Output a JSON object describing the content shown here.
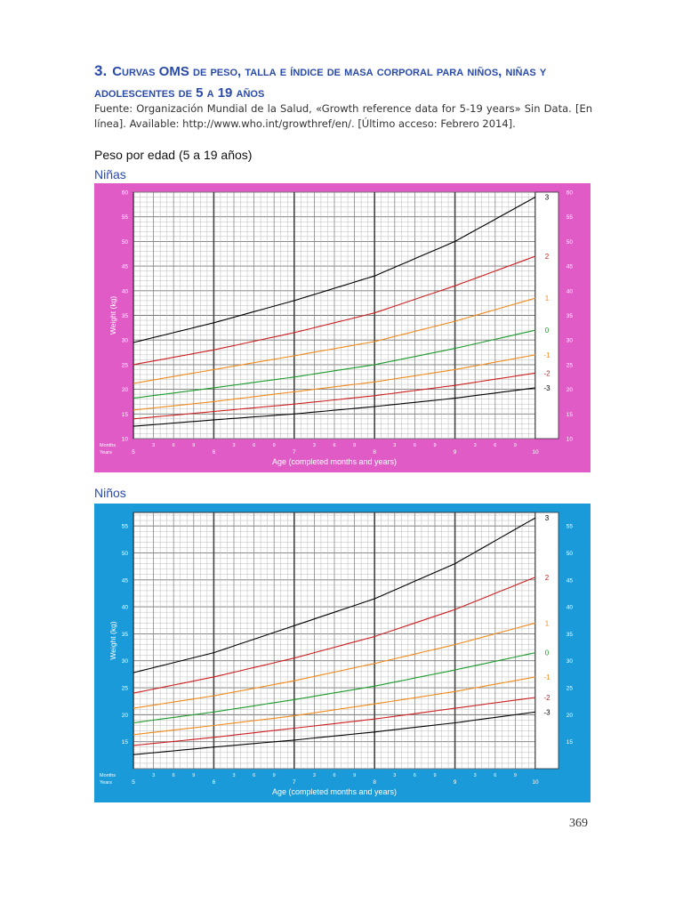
{
  "heading": {
    "number": "3.",
    "text": "Curvas OMS de peso, talla e índice de masa corporal para niños, niñas y adolescentes de 5 a 19 años"
  },
  "source": "Fuente: Organización Mundial de la Salud, «Growth reference data for 5-19 years» Sin Data. [En línea]. Available: http://www.who.int/growthref/en/. [Último acceso: Febrero 2014].",
  "subtitle": "Peso por edad (5 a 19 años)",
  "page_number": "369",
  "colors": {
    "girls_frame": "#e05bc6",
    "boys_frame": "#1a9ad8",
    "heading": "#2a4aa8",
    "sd_3": "#000000",
    "sd_2": "#cc1f1f",
    "sd_1": "#f08a1c",
    "sd_0": "#1c9a2c"
  },
  "chart_data": [
    {
      "type": "line",
      "section_label": "Niñas",
      "ylabel": "Weight (kg)",
      "xlabel": "Age (completed months and years)",
      "row_label_months": "Months",
      "row_label_years": "Years",
      "x_ticks_years": [
        "5",
        "6",
        "7",
        "8",
        "9",
        "10"
      ],
      "x_ticks_months": [
        "3",
        "6",
        "9"
      ],
      "xlim": [
        5,
        10
      ],
      "ylim": [
        10,
        60
      ],
      "y_ticks": [
        10,
        15,
        20,
        25,
        30,
        35,
        40,
        45,
        50,
        55,
        60
      ],
      "grid": true,
      "x": [
        5,
        6,
        7,
        8,
        9,
        10
      ],
      "series": [
        {
          "name": "3",
          "color": "#000000",
          "values": [
            29.5,
            33.5,
            38,
            43,
            50,
            59
          ]
        },
        {
          "name": "2",
          "color": "#cc1f1f",
          "values": [
            25,
            28,
            31.5,
            35.5,
            41,
            47
          ]
        },
        {
          "name": "1",
          "color": "#f08a1c",
          "values": [
            21.2,
            24,
            26.8,
            29.7,
            33.8,
            38.5
          ]
        },
        {
          "name": "0",
          "color": "#1c9a2c",
          "values": [
            18.2,
            20.3,
            22.5,
            25,
            28.3,
            32
          ]
        },
        {
          "name": "-1",
          "color": "#f08a1c",
          "values": [
            15.8,
            17.5,
            19.5,
            21.5,
            24,
            27
          ]
        },
        {
          "name": "-2",
          "color": "#cc1f1f",
          "values": [
            14,
            15.5,
            17,
            18.7,
            20.8,
            23.3
          ]
        },
        {
          "name": "-3",
          "color": "#000000",
          "values": [
            12.5,
            13.8,
            15,
            16.5,
            18.2,
            20.3
          ]
        }
      ]
    },
    {
      "type": "line",
      "section_label": "Niños",
      "ylabel": "Weight (kg)",
      "xlabel": "Age (completed months and years)",
      "row_label_months": "Months",
      "row_label_years": "Years",
      "x_ticks_years": [
        "5",
        "6",
        "7",
        "8",
        "9",
        "10"
      ],
      "x_ticks_months": [
        "3",
        "6",
        "9"
      ],
      "xlim": [
        5,
        10
      ],
      "ylim": [
        10,
        57.5
      ],
      "y_ticks": [
        15,
        20,
        25,
        30,
        35,
        40,
        45,
        50,
        55
      ],
      "grid": true,
      "x": [
        5,
        6,
        7,
        8,
        9,
        10
      ],
      "series": [
        {
          "name": "3",
          "color": "#000000",
          "values": [
            27.8,
            31.5,
            36.5,
            41.5,
            48,
            56.5
          ]
        },
        {
          "name": "2",
          "color": "#cc1f1f",
          "values": [
            24,
            27,
            30.5,
            34.5,
            39.5,
            45.5
          ]
        },
        {
          "name": "1",
          "color": "#f08a1c",
          "values": [
            21.2,
            23.5,
            26.3,
            29.5,
            33,
            37
          ]
        },
        {
          "name": "0",
          "color": "#1c9a2c",
          "values": [
            18.5,
            20.5,
            22.8,
            25.3,
            28.3,
            31.5
          ]
        },
        {
          "name": "-1",
          "color": "#f08a1c",
          "values": [
            16.3,
            18,
            19.8,
            22,
            24.3,
            27
          ]
        },
        {
          "name": "-2",
          "color": "#cc1f1f",
          "values": [
            14.3,
            15.8,
            17.5,
            19.2,
            21.2,
            23.2
          ]
        },
        {
          "name": "-3",
          "color": "#000000",
          "values": [
            12.6,
            14,
            15.3,
            16.8,
            18.5,
            20.5
          ]
        }
      ]
    }
  ]
}
